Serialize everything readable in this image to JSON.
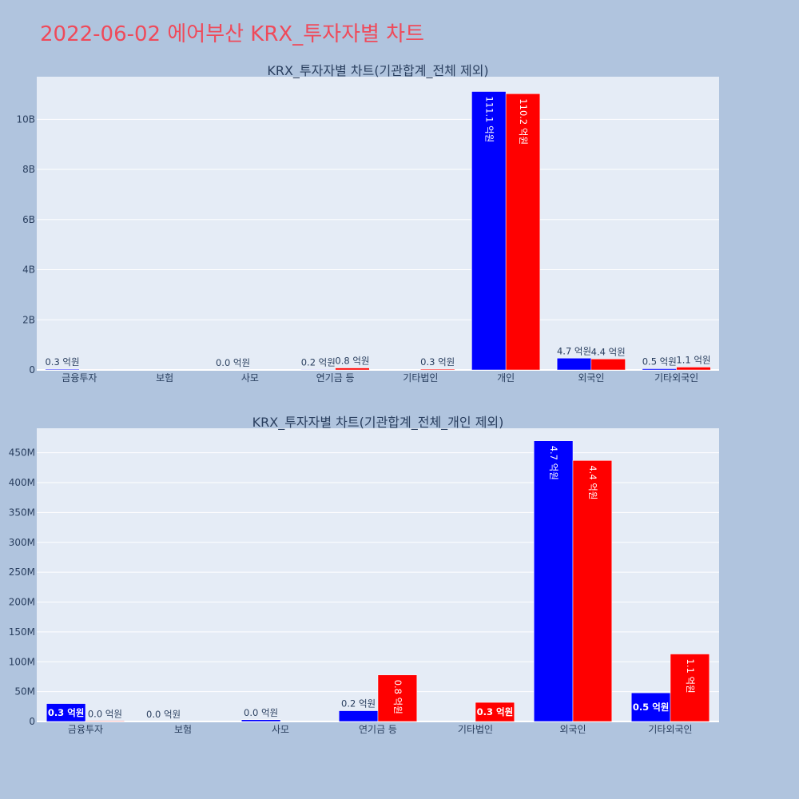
{
  "page": {
    "title": "2022-06-02 에어부산 KRX_투자자별 차트"
  },
  "colors": {
    "buy": "#0000ff",
    "sell": "#ff0000",
    "plot_bg": "#e5ecf6",
    "paper_bg": "#b0c4de",
    "title": "#ef4a5a"
  },
  "chart_data": [
    {
      "type": "bar",
      "title": "KRX_투자자별 차트(기관합계_전체 제외)",
      "categories": [
        "금융투자",
        "보험",
        "사모",
        "연기금 등",
        "기타법인",
        "개인",
        "외국인",
        "기타외국인"
      ],
      "y_ticks": [
        {
          "value": 0,
          "label": "0"
        },
        {
          "value": 2000000000,
          "label": "2B"
        },
        {
          "value": 4000000000,
          "label": "4B"
        },
        {
          "value": 6000000000,
          "label": "6B"
        },
        {
          "value": 8000000000,
          "label": "8B"
        },
        {
          "value": 10000000000,
          "label": "10B"
        }
      ],
      "ylim": [
        0,
        11700000000
      ],
      "series": [
        {
          "color": "#0000ff",
          "values": [
            30000000,
            0,
            3000000,
            18000000,
            0,
            11110000000,
            470000000,
            48000000
          ],
          "labels": [
            "0.3 억원",
            "",
            "0.0 억원",
            "0.2 억원",
            "",
            "111.1 억원",
            "4.7 억원",
            "0.5 억원"
          ]
        },
        {
          "color": "#ff0000",
          "values": [
            1000000,
            0,
            0,
            78000000,
            32000000,
            11020000000,
            437000000,
            113000000
          ],
          "labels": [
            "",
            "",
            "",
            "0.8 억원",
            "0.3 억원",
            "110.2 억원",
            "4.4 억원",
            "1.1 억원"
          ]
        }
      ]
    },
    {
      "type": "bar",
      "title": "KRX_투자자별 차트(기관합계_전체_개인 제외)",
      "categories": [
        "금융투자",
        "보험",
        "사모",
        "연기금 등",
        "기타법인",
        "외국인",
        "기타외국인"
      ],
      "y_ticks": [
        {
          "value": 0,
          "label": "0"
        },
        {
          "value": 50000000,
          "label": "50M"
        },
        {
          "value": 100000000,
          "label": "100M"
        },
        {
          "value": 150000000,
          "label": "150M"
        },
        {
          "value": 200000000,
          "label": "200M"
        },
        {
          "value": 250000000,
          "label": "250M"
        },
        {
          "value": 300000000,
          "label": "300M"
        },
        {
          "value": 350000000,
          "label": "350M"
        },
        {
          "value": 400000000,
          "label": "400M"
        },
        {
          "value": 450000000,
          "label": "450M"
        }
      ],
      "ylim": [
        0,
        491000000
      ],
      "series": [
        {
          "color": "#0000ff",
          "values": [
            30000000,
            0,
            3000000,
            18000000,
            0,
            470000000,
            48000000
          ],
          "labels": [
            "0.3 억원",
            "0.0 억원",
            "0.0 억원",
            "0.2 억원",
            "",
            "4.7 억원",
            "0.5 억원"
          ]
        },
        {
          "color": "#ff0000",
          "values": [
            1000000,
            0,
            0,
            78000000,
            32000000,
            437000000,
            113000000
          ],
          "labels": [
            "0.0 억원",
            "",
            "",
            "0.8 억원",
            "0.3 억원",
            "4.4 억원",
            "1.1 억원"
          ]
        }
      ]
    }
  ]
}
